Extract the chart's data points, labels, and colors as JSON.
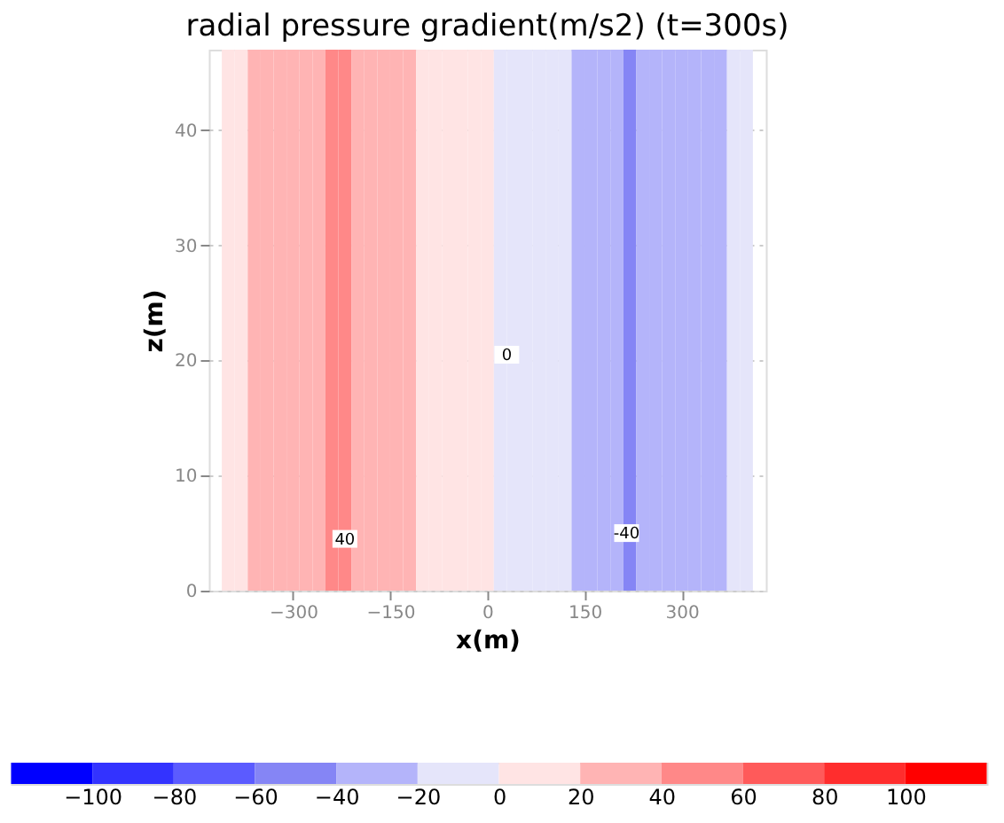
{
  "chart_data": {
    "type": "heatmap",
    "title": "radial pressure gradient(m/s2) (t=300s)",
    "xlabel": "x(m)",
    "ylabel": "z(m)",
    "x": [
      -420,
      -400,
      -380,
      -360,
      -340,
      -320,
      -300,
      -280,
      -260,
      -240,
      -220,
      -200,
      -180,
      -160,
      -140,
      -120,
      -100,
      -80,
      -60,
      -40,
      -20,
      0,
      20,
      40,
      60,
      80,
      100,
      120,
      140,
      160,
      180,
      200,
      220,
      240,
      260,
      280,
      300,
      320,
      340,
      360,
      380,
      400,
      420
    ],
    "cells": [
      [
        null,
        10,
        10,
        30,
        30,
        30,
        30,
        30,
        30,
        50,
        50,
        30,
        30,
        30,
        30,
        30,
        10,
        10,
        10,
        10,
        10,
        10,
        -10,
        -10,
        -10,
        -10,
        -10,
        -10,
        -30,
        -30,
        -30,
        -30,
        -50,
        -30,
        -30,
        -30,
        -30,
        -30,
        -30,
        -30,
        -10,
        -10,
        null
      ]
    ],
    "xlim": [
      -430,
      430
    ],
    "xticks": [
      -300,
      -150,
      0,
      150,
      300
    ],
    "ylim": [
      0,
      47
    ],
    "yticks": [
      0,
      10,
      20,
      30,
      40
    ],
    "clim": [
      -120,
      120
    ],
    "cticks": [
      -100,
      -80,
      -60,
      -40,
      -20,
      0,
      20,
      40,
      60,
      80,
      100
    ],
    "colors": [
      "#0000ff",
      "#3333ff",
      "#5b5bff",
      "#8585f5",
      "#b4b4fa",
      "#e5e5fa",
      "#ffe4e4",
      "#ffb4b4",
      "#ff8888",
      "#ff5a5a",
      "#ff2d2d",
      "#ff0000"
    ],
    "grid": "y",
    "annotations": [
      {
        "text": "40",
        "x": -220,
        "y": 4.5
      },
      {
        "text": "0",
        "x": 30,
        "y": 20.5
      },
      {
        "text": "-40",
        "x": 215,
        "y": 5
      }
    ]
  }
}
